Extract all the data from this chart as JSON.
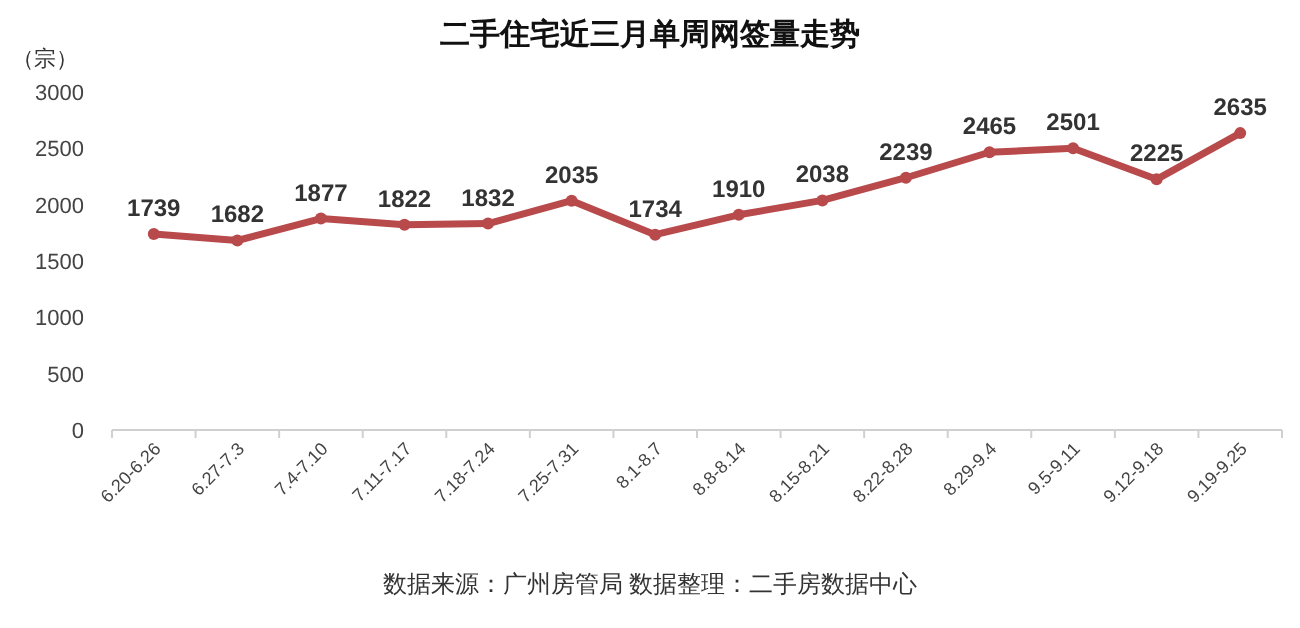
{
  "chart_data": {
    "type": "line",
    "title": "二手住宅近三月单周网签量走势",
    "ylabel": "（宗）",
    "categories": [
      "6.20-6.26",
      "6.27-7.3",
      "7.4-7.10",
      "7.11-7.17",
      "7.18-7.24",
      "7.25-7.31",
      "8.1-8.7",
      "8.8-8.14",
      "8.15-8.21",
      "8.22-8.28",
      "8.29-9.4",
      "9.5-9.11",
      "9.12-9.18",
      "9.19-9.25"
    ],
    "values": [
      1739,
      1682,
      1877,
      1822,
      1832,
      2035,
      1734,
      1910,
      2038,
      2239,
      2465,
      2501,
      2225,
      2635
    ],
    "color": "#b84a4c",
    "ylim": [
      0,
      3000
    ],
    "yticks": [
      0,
      500,
      1000,
      1500,
      2000,
      2500,
      3000
    ],
    "data_labels": true,
    "marker": "circle",
    "annotations": [
      "数据来源：广州房管局  数据整理：二手房数据中心"
    ]
  }
}
